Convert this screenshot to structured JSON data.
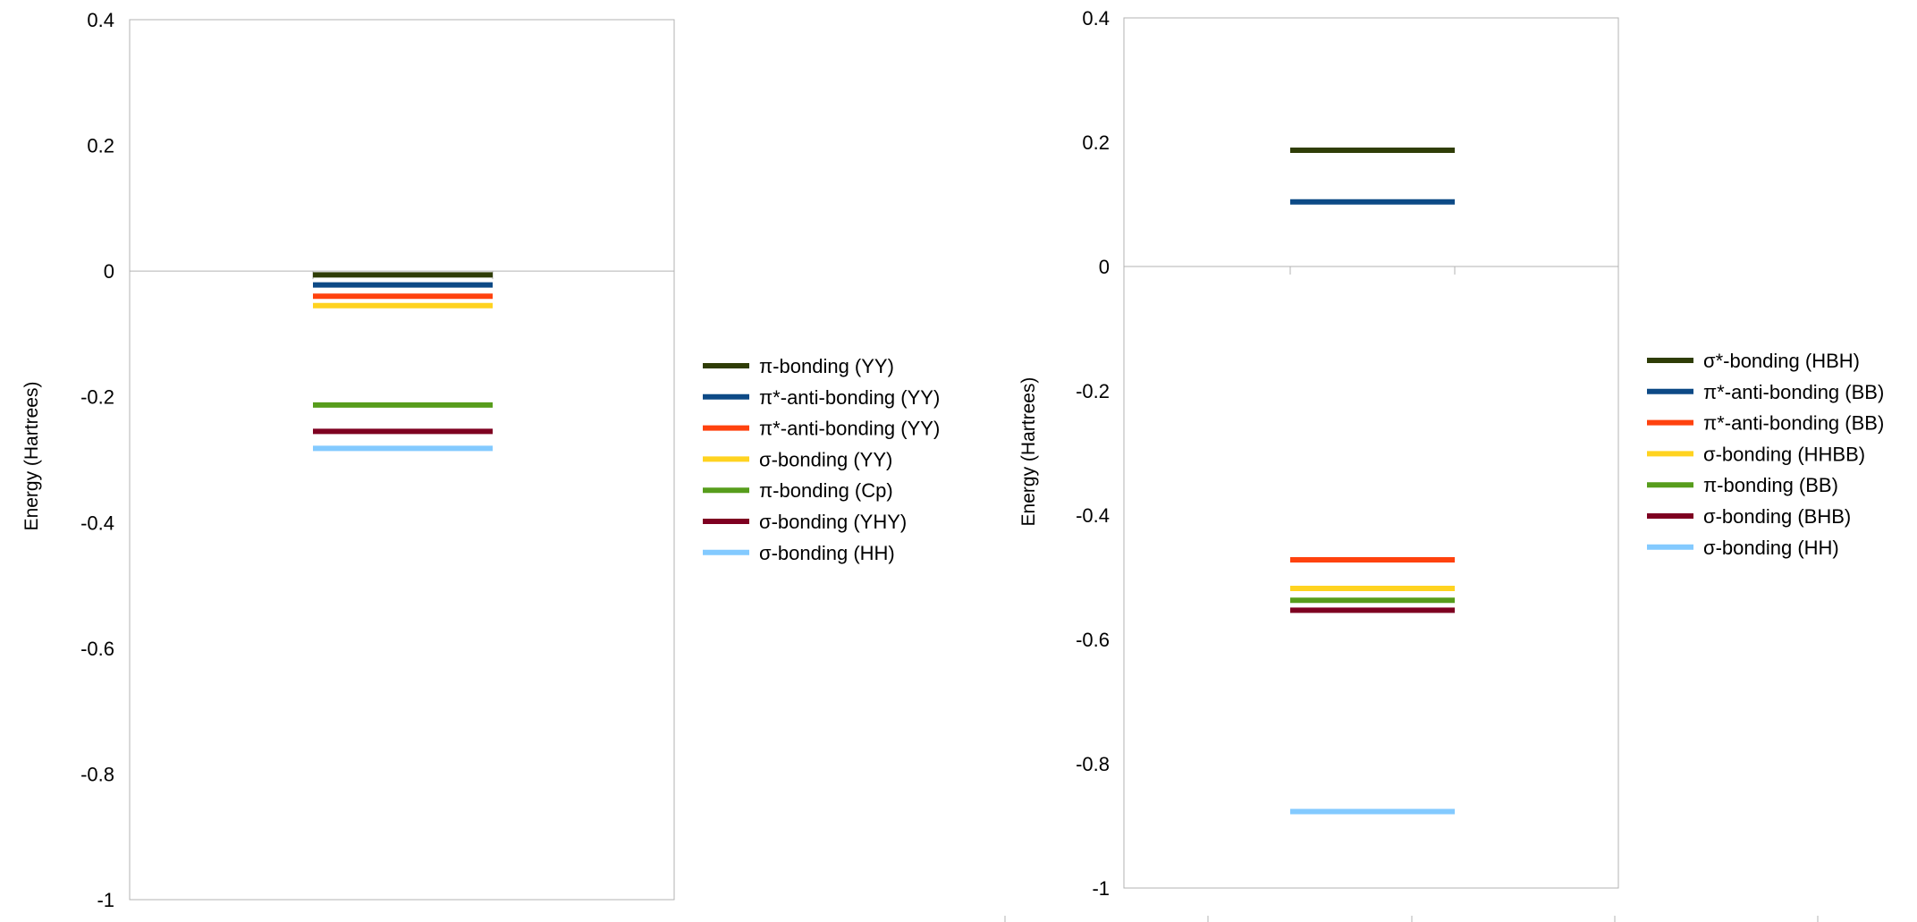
{
  "chart_data": [
    {
      "type": "line",
      "title": "",
      "xlabel": "",
      "ylabel": "Energy (Hartrees)",
      "ylim": [
        -1,
        0.4
      ],
      "yticks": [
        0.4,
        0.2,
        0,
        -0.2,
        -0.4,
        -0.6,
        -0.8,
        -1
      ],
      "ytick_labels": [
        "0.4",
        "0.2",
        "0",
        "-0.2",
        "-0.4",
        "-0.6",
        "-0.8",
        "-1"
      ],
      "grid": false,
      "legend_position": "right",
      "series": [
        {
          "name": "π-bonding (YY)",
          "value": -0.006,
          "color": "#2f3d07"
        },
        {
          "name": "π*-anti-bonding (YY)",
          "value": -0.022,
          "color": "#0d4a86"
        },
        {
          "name": "π*-anti-bonding (YY)",
          "value": -0.04,
          "color": "#ff420e"
        },
        {
          "name": "σ-bonding (YY)",
          "value": -0.055,
          "color": "#ffd320"
        },
        {
          "name": "π-bonding (Cp)",
          "value": -0.213,
          "color": "#579d1c"
        },
        {
          "name": "σ-bonding (YHY)",
          "value": -0.255,
          "color": "#7e0021"
        },
        {
          "name": "σ-bonding (HH)",
          "value": -0.282,
          "color": "#83caff"
        }
      ]
    },
    {
      "type": "line",
      "title": "",
      "xlabel": "",
      "ylabel": "Energy (Hartrees)",
      "ylim": [
        -1,
        0.4
      ],
      "yticks": [
        0.4,
        0.2,
        0,
        -0.2,
        -0.4,
        -0.6,
        -0.8,
        -1
      ],
      "ytick_labels": [
        "0.4",
        "0.2",
        "0",
        "-0.2",
        "-0.4",
        "-0.6",
        "-0.8",
        "-1"
      ],
      "grid": false,
      "legend_position": "right",
      "series": [
        {
          "name": "σ*-bonding (HBH)",
          "value": 0.187,
          "color": "#2f3d07"
        },
        {
          "name": "π*-anti-bonding (BB)",
          "value": 0.104,
          "color": "#0d4a86"
        },
        {
          "name": "π*-anti-bonding (BB)",
          "value": -0.472,
          "color": "#ff420e"
        },
        {
          "name": "σ-bonding (HHBB)",
          "value": -0.518,
          "color": "#ffd320"
        },
        {
          "name": "π-bonding (BB)",
          "value": -0.537,
          "color": "#579d1c"
        },
        {
          "name": "σ-bonding (BHB)",
          "value": -0.553,
          "color": "#7e0021"
        },
        {
          "name": "σ-bonding (HH)",
          "value": -0.877,
          "color": "#83caff"
        }
      ]
    }
  ]
}
